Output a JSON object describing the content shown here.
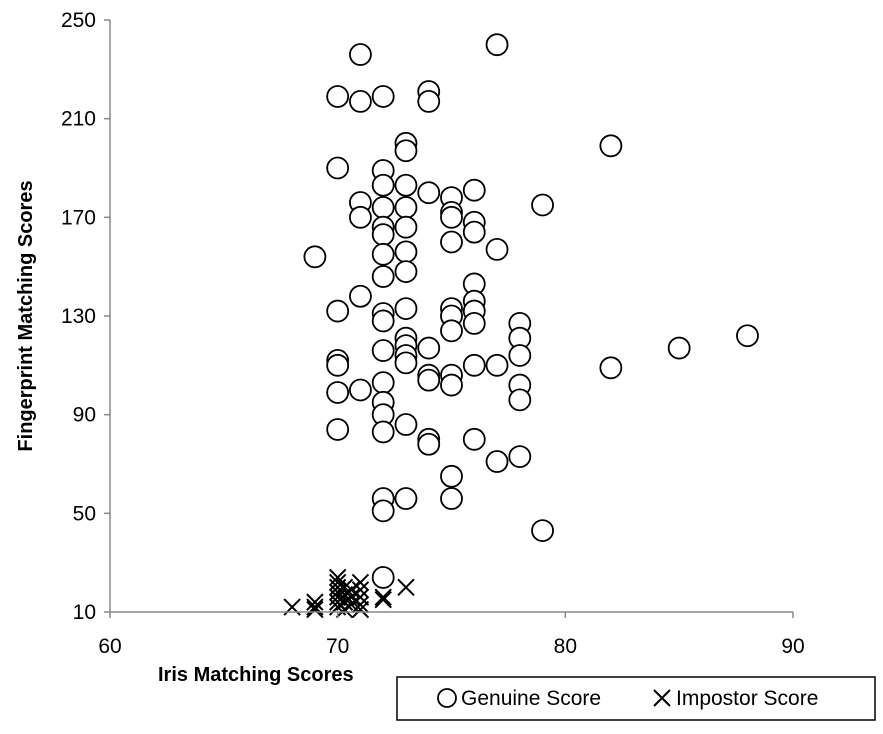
{
  "chart_data": {
    "type": "scatter",
    "xlabel": "Iris Matching Scores",
    "ylabel": "Fingerprint Matching Scores",
    "xlim": [
      60,
      90
    ],
    "ylim": [
      10,
      250
    ],
    "xticks": [
      60,
      70,
      80,
      90
    ],
    "yticks": [
      10,
      50,
      90,
      130,
      170,
      210,
      250
    ],
    "grid": false,
    "legend_position": "bottom-right",
    "series": [
      {
        "name": "Genuine Score",
        "marker": "circle",
        "color": "#000000",
        "points": [
          [
            69,
            154
          ],
          [
            70,
            219
          ],
          [
            70,
            190
          ],
          [
            70,
            132
          ],
          [
            70,
            112
          ],
          [
            70,
            110
          ],
          [
            70,
            99
          ],
          [
            70,
            84
          ],
          [
            71,
            236
          ],
          [
            71,
            217
          ],
          [
            71,
            176
          ],
          [
            71,
            170
          ],
          [
            71,
            138
          ],
          [
            71,
            100
          ],
          [
            72,
            219
          ],
          [
            72,
            189
          ],
          [
            72,
            183
          ],
          [
            72,
            174
          ],
          [
            72,
            166
          ],
          [
            72,
            163
          ],
          [
            72,
            155
          ],
          [
            72,
            146
          ],
          [
            72,
            131
          ],
          [
            72,
            128
          ],
          [
            72,
            116
          ],
          [
            72,
            103
          ],
          [
            72,
            95
          ],
          [
            72,
            90
          ],
          [
            72,
            83
          ],
          [
            72,
            56
          ],
          [
            72,
            51
          ],
          [
            72,
            24
          ],
          [
            73,
            200
          ],
          [
            73,
            197
          ],
          [
            73,
            183
          ],
          [
            73,
            174
          ],
          [
            73,
            166
          ],
          [
            73,
            156
          ],
          [
            73,
            148
          ],
          [
            73,
            133
          ],
          [
            73,
            121
          ],
          [
            73,
            118
          ],
          [
            73,
            114
          ],
          [
            73,
            111
          ],
          [
            73,
            86
          ],
          [
            73,
            56
          ],
          [
            74,
            221
          ],
          [
            74,
            217
          ],
          [
            74,
            180
          ],
          [
            74,
            117
          ],
          [
            74,
            106
          ],
          [
            74,
            104
          ],
          [
            74,
            80
          ],
          [
            74,
            78
          ],
          [
            75,
            178
          ],
          [
            75,
            172
          ],
          [
            75,
            170
          ],
          [
            75,
            160
          ],
          [
            75,
            133
          ],
          [
            75,
            130
          ],
          [
            75,
            124
          ],
          [
            75,
            106
          ],
          [
            75,
            102
          ],
          [
            75,
            65
          ],
          [
            75,
            56
          ],
          [
            76,
            181
          ],
          [
            76,
            168
          ],
          [
            76,
            164
          ],
          [
            76,
            143
          ],
          [
            76,
            136
          ],
          [
            76,
            132
          ],
          [
            76,
            127
          ],
          [
            76,
            110
          ],
          [
            76,
            80
          ],
          [
            77,
            240
          ],
          [
            77,
            157
          ],
          [
            77,
            110
          ],
          [
            77,
            71
          ],
          [
            78,
            127
          ],
          [
            78,
            121
          ],
          [
            78,
            114
          ],
          [
            78,
            102
          ],
          [
            78,
            96
          ],
          [
            78,
            73
          ],
          [
            79,
            175
          ],
          [
            79,
            43
          ],
          [
            82,
            199
          ],
          [
            82,
            109
          ],
          [
            85,
            117
          ],
          [
            88,
            122
          ]
        ]
      },
      {
        "name": "Impostor Score",
        "marker": "x",
        "color": "#000000",
        "points": [
          [
            68,
            12
          ],
          [
            69,
            14
          ],
          [
            69,
            12
          ],
          [
            69,
            11
          ],
          [
            70,
            24
          ],
          [
            70,
            22
          ],
          [
            70,
            20
          ],
          [
            70,
            18
          ],
          [
            70,
            16
          ],
          [
            70,
            14
          ],
          [
            70,
            12
          ],
          [
            70.3,
            20
          ],
          [
            70.3,
            17
          ],
          [
            70.3,
            14
          ],
          [
            70.3,
            11
          ],
          [
            70.6,
            19
          ],
          [
            70.6,
            16
          ],
          [
            70.6,
            13
          ],
          [
            71,
            22
          ],
          [
            71,
            19
          ],
          [
            71,
            16
          ],
          [
            71,
            13
          ],
          [
            71,
            11
          ],
          [
            72,
            16
          ],
          [
            72,
            15
          ],
          [
            73,
            20
          ]
        ]
      }
    ]
  }
}
